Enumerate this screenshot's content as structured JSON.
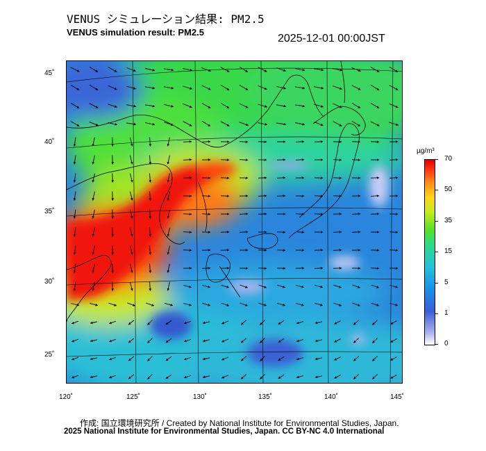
{
  "header": {
    "title_jp": "VENUS シミュレーション結果: PM2.5",
    "title_en": "VENUS simulation result: PM2.5",
    "timestamp": "2025-12-01 00:00JST"
  },
  "map": {
    "lat_ticks": [
      "45˚",
      "40˚",
      "35˚",
      "30˚",
      "25˚"
    ],
    "lon_ticks": [
      "120˚",
      "125˚",
      "130˚",
      "135˚",
      "140˚",
      "145˚"
    ]
  },
  "legend": {
    "unit": "µg/m³",
    "ticks": [
      "70",
      "50",
      "35",
      "15",
      "5",
      "1",
      "0"
    ]
  },
  "footer": {
    "credit_line1": "作成: 国立環境研究所 / Created by National Institute for Environmental Studies, Japan.",
    "credit_line2": "2025 National Institute for Environmental Studies, Japan. CC BY-NC 4.0 International"
  }
}
